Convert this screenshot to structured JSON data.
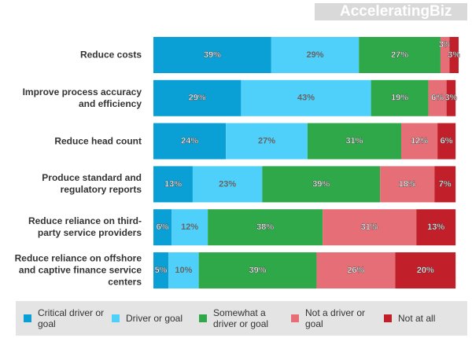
{
  "logo": "AcceleratingBiz",
  "chart_data": {
    "type": "stacked-barh",
    "categories": [
      "Reduce costs",
      "Improve process accuracy and efficiency",
      "Reduce head count",
      "Produce standard and regulatory reports",
      "Reduce reliance on third-party service providers",
      "Reduce reliance on offshore and captive finance service centers"
    ],
    "series": [
      {
        "name": "Critical driver or goal",
        "color": "#0a9fd5",
        "values": [
          39,
          29,
          24,
          13,
          6,
          5
        ],
        "value_labels": [
          "39%",
          "29%",
          "24%",
          "13%",
          "6%",
          "5%"
        ]
      },
      {
        "name": "Driver or goal",
        "color": "#4fd0fb",
        "values": [
          29,
          43,
          27,
          23,
          12,
          10
        ],
        "value_labels": [
          "29%",
          "43%",
          "27%",
          "23%",
          "12%",
          "10%"
        ]
      },
      {
        "name": "Somewhat  a driver or goal",
        "color": "#2fa84a",
        "values": [
          27,
          19,
          31,
          39,
          38,
          39
        ],
        "value_labels": [
          "27%",
          "19%",
          "31%",
          "39%",
          "38%",
          "39%"
        ]
      },
      {
        "name": "Not a driver or goal",
        "color": "#e66f77",
        "values": [
          3,
          6,
          12,
          18,
          31,
          26
        ],
        "value_labels": [
          "3%",
          "6%",
          "12%",
          "18%",
          "31%",
          "26%"
        ]
      },
      {
        "name": "Not at all",
        "color": "#c1202b",
        "values": [
          3,
          3,
          6,
          7,
          13,
          20
        ],
        "value_labels": [
          "3%",
          "3%",
          "6%",
          "7%",
          "13%",
          "20%"
        ]
      }
    ]
  }
}
